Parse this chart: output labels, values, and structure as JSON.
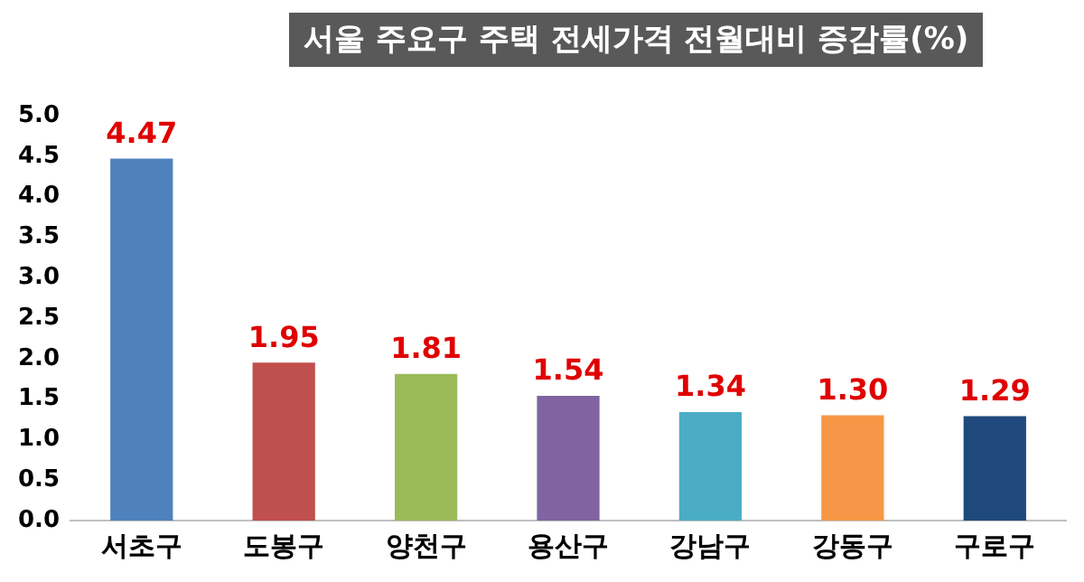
{
  "chart_data": {
    "type": "bar",
    "title": "서울 주요구 주택 전세가격 전월대비 증감률(%)",
    "categories": [
      "서초구",
      "도봉구",
      "양천구",
      "용산구",
      "강남구",
      "강동구",
      "구로구"
    ],
    "values": [
      4.47,
      1.95,
      1.81,
      1.54,
      1.34,
      1.3,
      1.29
    ],
    "colors": [
      "#4f81bd",
      "#c0504d",
      "#9bbb59",
      "#8064a2",
      "#4bacc6",
      "#f79646",
      "#1f497d"
    ],
    "ylim": [
      0,
      5
    ],
    "yticks": [
      {
        "value": 0,
        "label": "0.0"
      },
      {
        "value": 0.5,
        "label": "0.5"
      },
      {
        "value": 1,
        "label": "1.0"
      },
      {
        "value": 1.5,
        "label": "1.5"
      },
      {
        "value": 2,
        "label": "2.0"
      },
      {
        "value": 2.5,
        "label": "2.5"
      },
      {
        "value": 3,
        "label": "3.0"
      },
      {
        "value": 3.5,
        "label": "3.5"
      },
      {
        "value": 4,
        "label": "4.0"
      },
      {
        "value": 4.5,
        "label": "4.5"
      },
      {
        "value": 5,
        "label": "5.0"
      }
    ],
    "value_labels": [
      "4.47",
      "1.95",
      "1.81",
      "1.54",
      "1.34",
      "1.30",
      "1.29"
    ],
    "grid": false,
    "legend": false
  }
}
